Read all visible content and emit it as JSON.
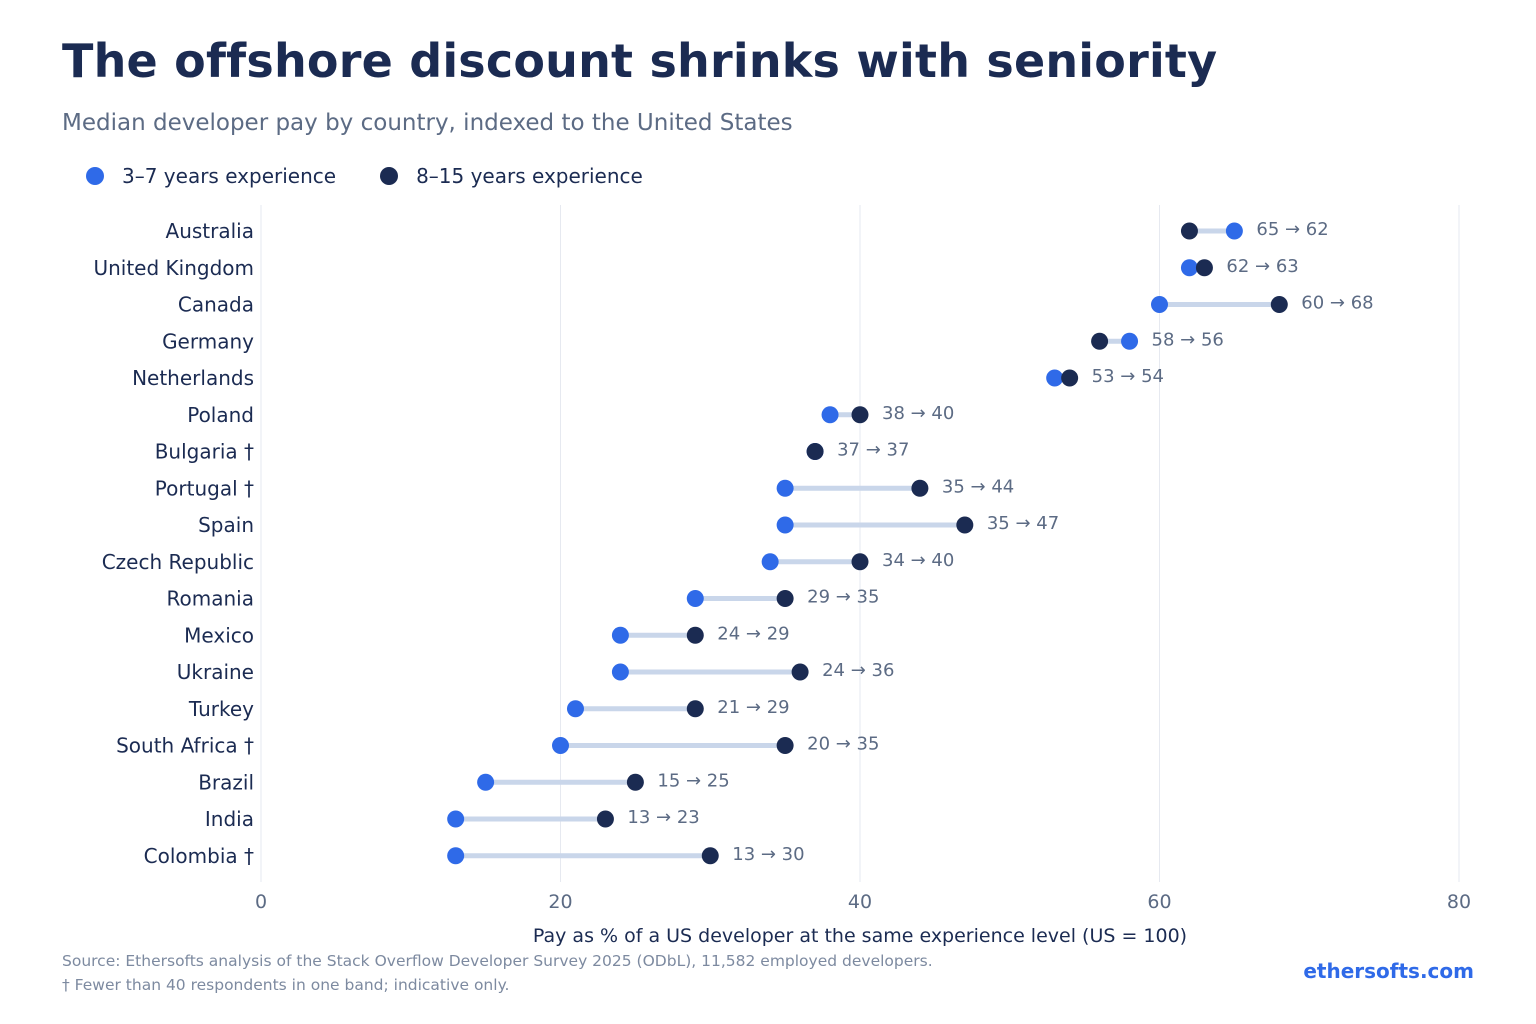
{
  "header": {
    "title": "The offshore discount shrinks with seniority",
    "subtitle": "Median developer pay by country, indexed to the United States"
  },
  "legend": {
    "junior_label": "3–7 years experience",
    "senior_label": "8–15 years experience"
  },
  "colors": {
    "junior": "#2f6ae8",
    "senior": "#1b2b52",
    "connector": "#c9d6ea",
    "grid": "#e6e9f0",
    "text": "#1b2b52",
    "muted": "#5c6b84"
  },
  "chart_data": {
    "type": "dumbbell",
    "xlabel": "Pay as % of a US developer at the same experience level (US = 100)",
    "xlim": [
      0,
      80
    ],
    "xticks": [
      0,
      20,
      40,
      60,
      80
    ],
    "grid": true,
    "legend_position": "top-left",
    "series": [
      {
        "name": "3–7 years experience"
      },
      {
        "name": "8–15 years experience"
      }
    ],
    "categories": [
      "Australia",
      "United Kingdom",
      "Canada",
      "Germany",
      "Netherlands",
      "Poland",
      "Bulgaria †",
      "Portugal †",
      "Spain",
      "Czech Republic",
      "Romania",
      "Mexico",
      "Ukraine",
      "Turkey",
      "South Africa †",
      "Brazil",
      "India",
      "Colombia †"
    ],
    "junior": [
      65,
      62,
      60,
      58,
      53,
      38,
      37,
      35,
      35,
      34,
      29,
      24,
      24,
      21,
      20,
      15,
      13,
      13
    ],
    "senior": [
      62,
      63,
      68,
      56,
      54,
      40,
      37,
      44,
      47,
      40,
      35,
      29,
      36,
      29,
      35,
      25,
      23,
      30
    ],
    "value_labels": [
      "65 → 62",
      "62 → 63",
      "60 → 68",
      "58 → 56",
      "53 → 54",
      "38 → 40",
      "37 → 37",
      "35 → 44",
      "35 → 47",
      "34 → 40",
      "29 → 35",
      "24 → 29",
      "24 → 36",
      "21 → 29",
      "20 → 35",
      "15 → 25",
      "13 → 23",
      "13 → 30"
    ]
  },
  "footer": {
    "source": "Source: Ethersofts analysis of the Stack Overflow Developer Survey 2025 (ODbL), 11,582 employed developers.",
    "note": "† Fewer than 40 respondents in one band; indicative only.",
    "brand": "ethersofts.com"
  }
}
